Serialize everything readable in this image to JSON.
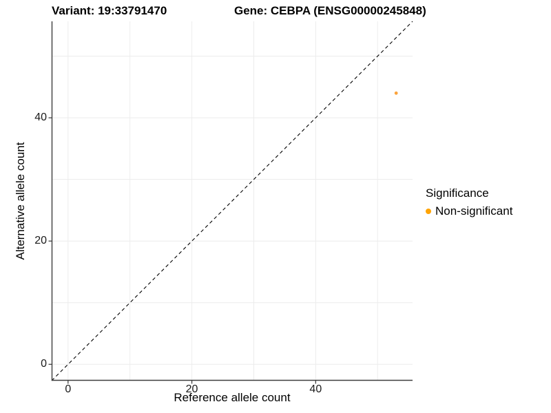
{
  "chart_data": {
    "type": "scatter",
    "title_left": "Variant: 19:33791470",
    "title_right": "Gene: CEBPA (ENSG00000245848)",
    "xlabel": "Reference allele count",
    "ylabel": "Alternative allele count",
    "xlim": [
      -2.65,
      55.65
    ],
    "ylim": [
      -2.65,
      55.65
    ],
    "xticks": [
      "0",
      "20",
      "40"
    ],
    "xtick_values": [
      0,
      20,
      40
    ],
    "yticks": [
      "0",
      "20",
      "40"
    ],
    "ytick_values": [
      0,
      20,
      40
    ],
    "grid": true,
    "grid_interval": 10,
    "identity_line": {
      "style": "dashed",
      "equation": "y = x",
      "color": "#000000"
    },
    "points": [
      {
        "x": 53,
        "y": 44,
        "significance": "Non-significant",
        "color": "#FBA33C"
      }
    ],
    "legend": {
      "title": "Significance",
      "position": "right",
      "items": [
        {
          "label": "Non-significant",
          "color": "#FFA405"
        }
      ]
    },
    "colors": {
      "grid": "#ECECEC",
      "axis": "#3C3C3C",
      "tick": "#333333",
      "background": "#FFFFFF"
    }
  }
}
